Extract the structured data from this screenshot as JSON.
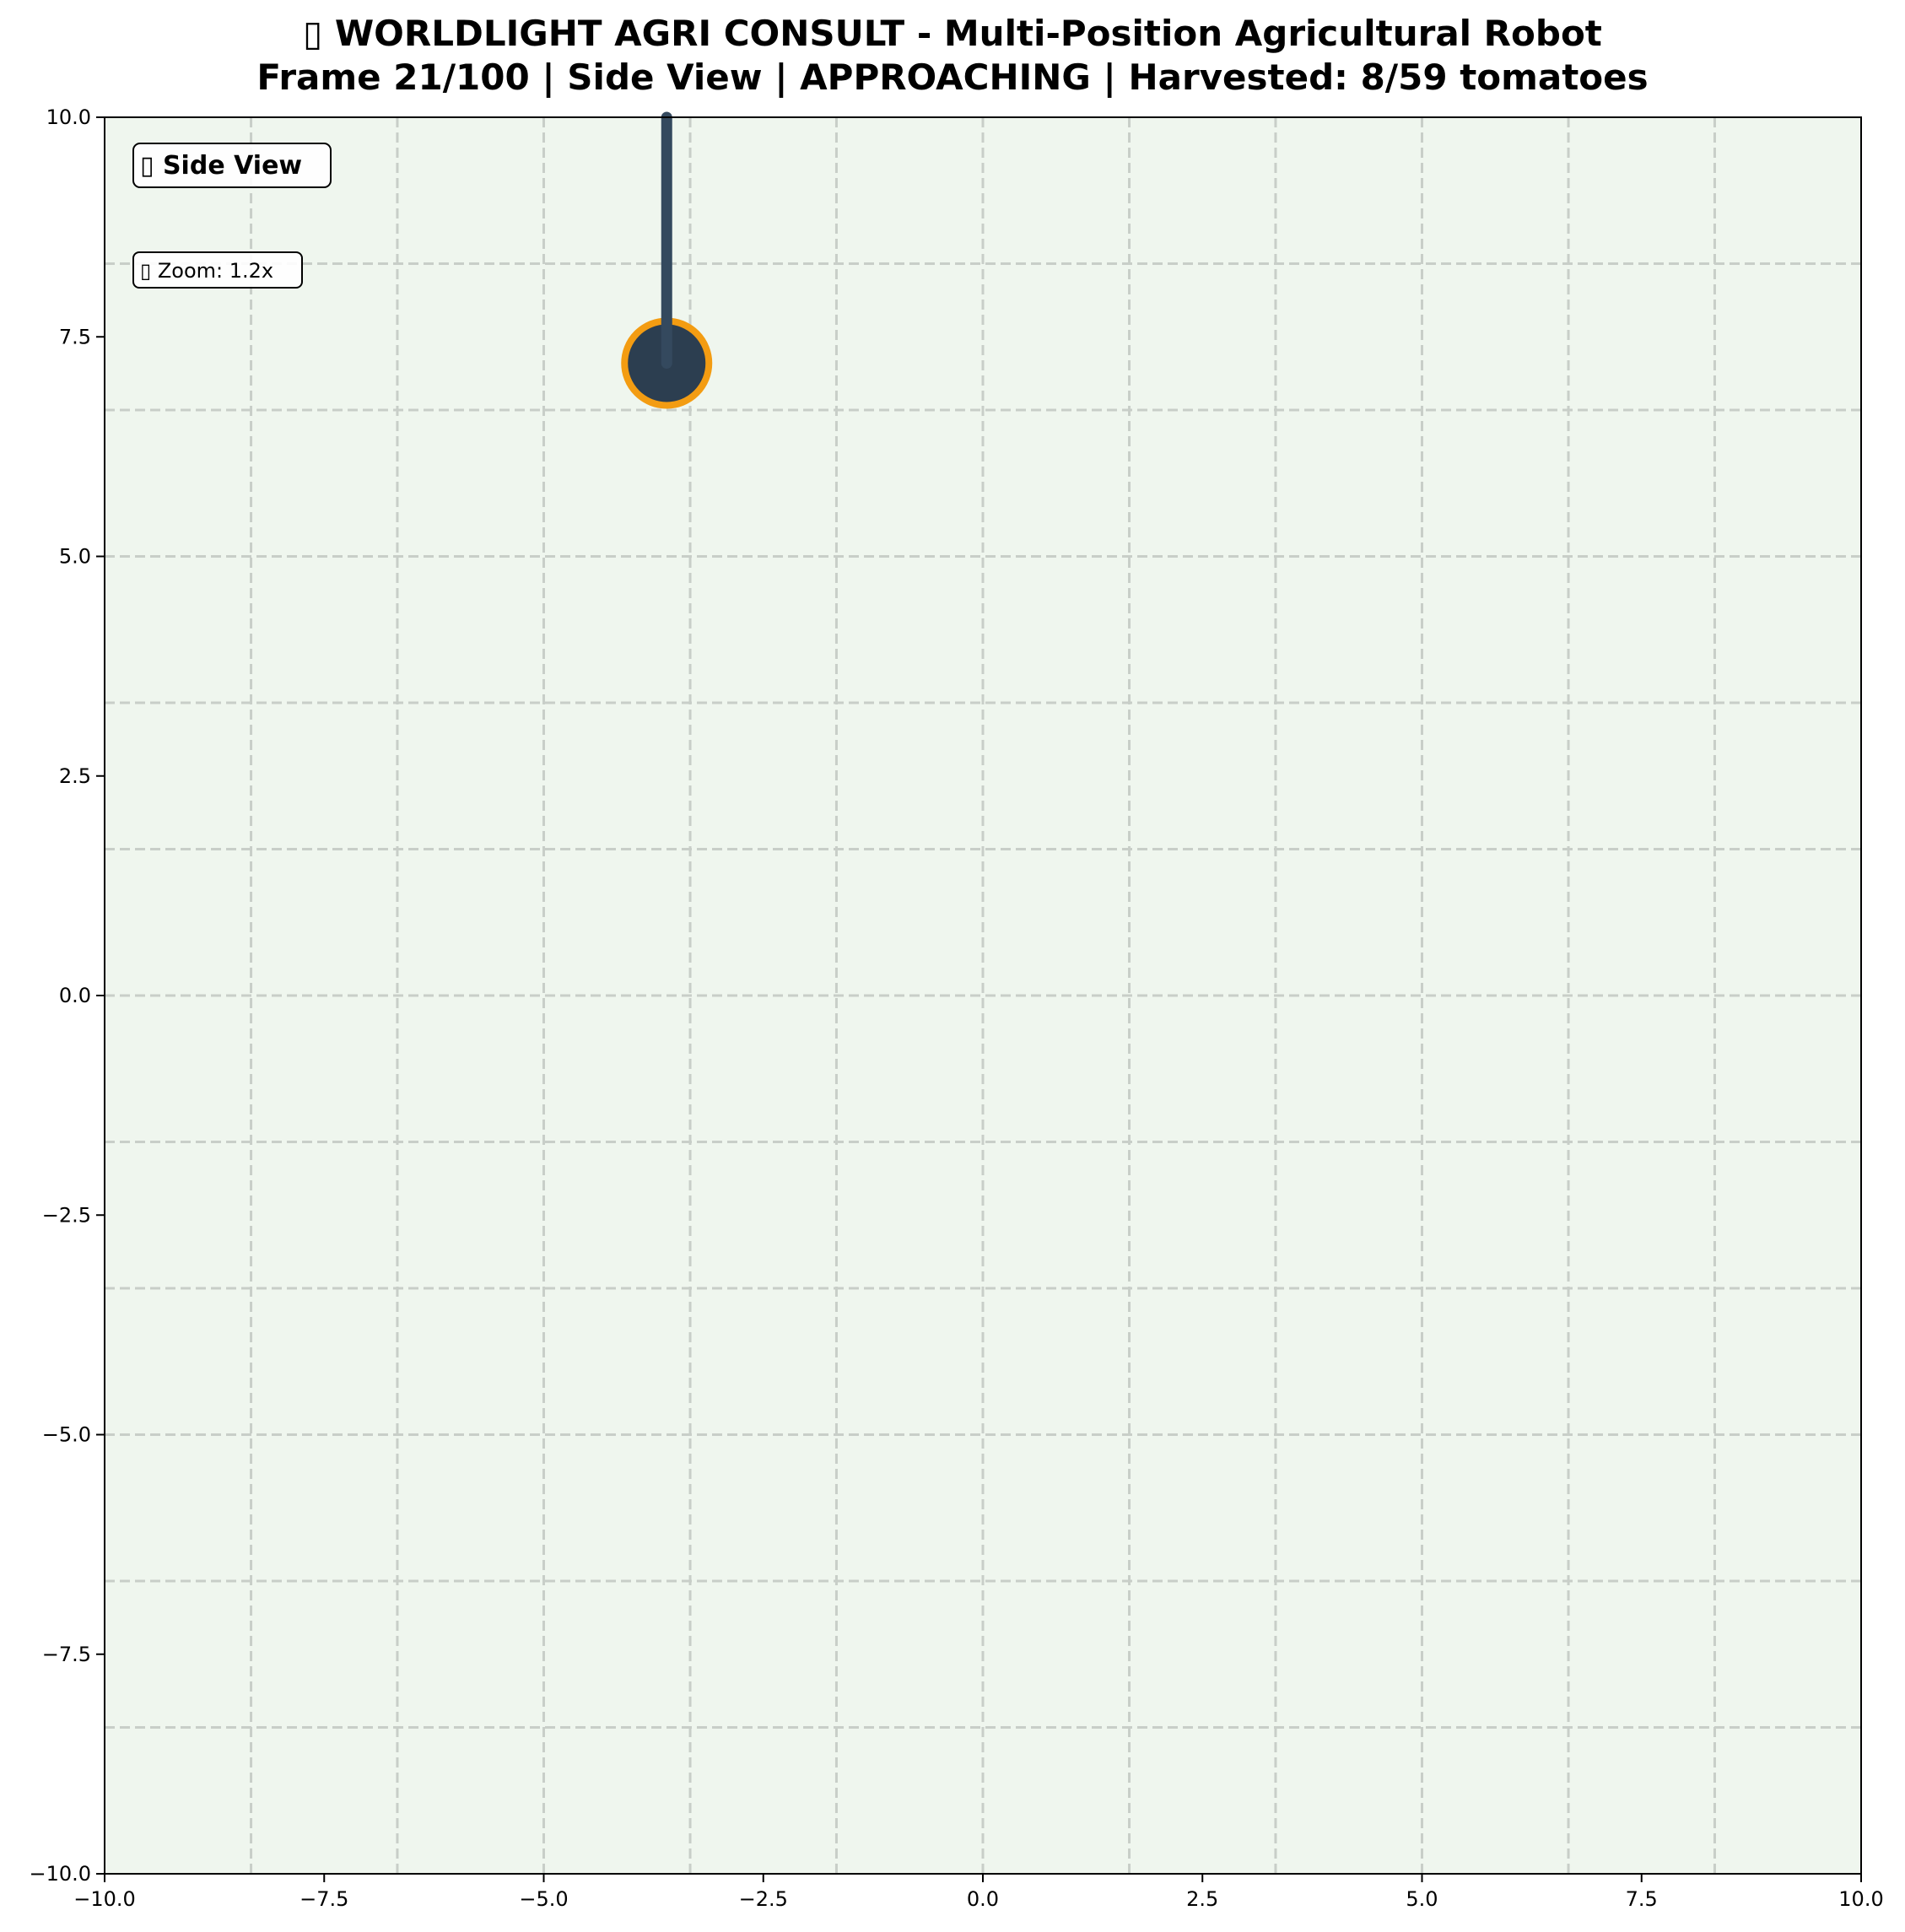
{
  "title": {
    "line1": "▯ WORLDLIGHT AGRI CONSULT - Multi-Position Agricultural Robot",
    "line2": "Frame 21/100 | Side View | APPROACHING | Harvested: 8/59 tomatoes"
  },
  "view_label": "▯ Side View",
  "zoom_label": "▯ Zoom: 1.2x",
  "colors": {
    "plot_background": "#eff6ee",
    "grid": "#c8cec8",
    "robot_body": "#2c3e50",
    "robot_outline": "#f39c12",
    "arm": "#34495e"
  },
  "chart_data": {
    "type": "scatter",
    "title": "▯ WORLDLIGHT AGRI CONSULT - Multi-Position Agricultural Robot\nFrame 21/100 | Side View | APPROACHING | Harvested: 8/59 tomatoes",
    "xlabel": "",
    "ylabel": "",
    "xlim": [
      -10,
      10
    ],
    "ylim": [
      -10,
      10
    ],
    "grid": true,
    "grid_style": "dashed",
    "xticks": [
      -10,
      -7.5,
      -5,
      -2.5,
      0,
      2.5,
      5,
      7.5,
      10
    ],
    "yticks": [
      -10,
      -7.5,
      -5,
      -2.5,
      0,
      2.5,
      5,
      7.5,
      10
    ],
    "xtick_labels": [
      "−10.0",
      "−7.5",
      "−5.0",
      "−2.5",
      "0.0",
      "2.5",
      "5.0",
      "7.5",
      "10.0"
    ],
    "ytick_labels": [
      "−10.0",
      "−7.5",
      "−5.0",
      "−2.5",
      "0.0",
      "2.5",
      "5.0",
      "7.5",
      "10.0"
    ],
    "grid_x": [
      -8.333,
      -6.667,
      -5,
      -3.333,
      -1.667,
      0,
      1.667,
      3.333,
      5,
      6.667,
      8.333
    ],
    "grid_y": [
      -8.333,
      -6.667,
      -5,
      -3.333,
      -1.667,
      0,
      1.667,
      3.333,
      5,
      6.667,
      8.333
    ],
    "robot": {
      "x": -3.6,
      "y": 7.2
    },
    "arm": {
      "x": -3.6,
      "y_start": 10,
      "y_end": 7.2
    }
  }
}
